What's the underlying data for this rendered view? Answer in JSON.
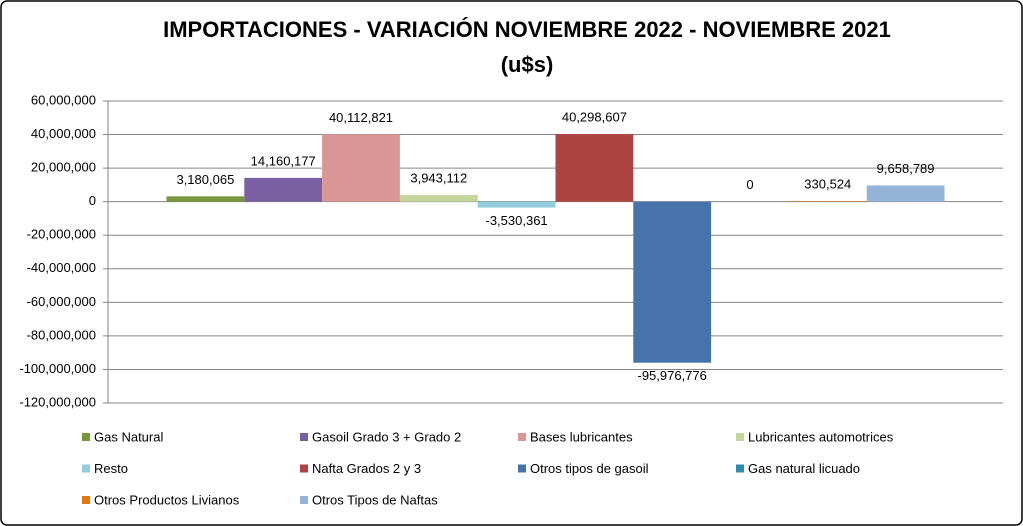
{
  "chart_data": {
    "type": "bar",
    "title": "IMPORTACIONES - VARIACIÓN NOVIEMBRE 2022 - NOVIEMBRE 2021",
    "subtitle": "(u$s)",
    "series": [
      {
        "name": "Gas Natural",
        "color": "#77973d",
        "values": [
          3180065
        ],
        "value_labels": [
          "3,180,065"
        ]
      },
      {
        "name": "Gasoil Grado 3 + Grado 2",
        "color": "#7b5fa3",
        "values": [
          14160177
        ],
        "value_labels": [
          "14,160,177"
        ]
      },
      {
        "name": "Bases lubricantes",
        "color": "#d99694",
        "values": [
          40112821
        ],
        "value_labels": [
          "40,112,821"
        ]
      },
      {
        "name": "Lubricantes automotrices",
        "color": "#c3d69b",
        "values": [
          3943112
        ],
        "value_labels": [
          "3,943,112"
        ]
      },
      {
        "name": "Resto",
        "color": "#93cddd",
        "values": [
          -3530361
        ],
        "value_labels": [
          "-3,530,361"
        ]
      },
      {
        "name": "Nafta Grados 2 y 3",
        "color": "#ab4442",
        "values": [
          40298607
        ],
        "value_labels": [
          "40,298,607"
        ]
      },
      {
        "name": "Otros tipos de gasoil",
        "color": "#4673a9",
        "values": [
          -95976776
        ],
        "value_labels": [
          "-95,976,776"
        ]
      },
      {
        "name": "Gas natural licuado",
        "color": "#2e8db0",
        "values": [
          0
        ]
      },
      {
        "name": "Otros Productos Livianos",
        "color": "#e4780f",
        "values": [
          330524
        ],
        "value_labels": [
          "330,524"
        ]
      },
      {
        "name": "Otros Tipos de Naftas",
        "color": "#95b3d7",
        "values": [
          9658789
        ],
        "value_labels": [
          "9,658,789"
        ]
      }
    ],
    "ylim": [
      -120000000,
      60000000
    ],
    "yticks": [
      {
        "value": -120000000,
        "label": "-120,000,000"
      },
      {
        "value": -100000000,
        "label": "-100,000,000"
      },
      {
        "value": -80000000,
        "label": "-80,000,000"
      },
      {
        "value": -60000000,
        "label": "-60,000,000"
      },
      {
        "value": -40000000,
        "label": "-40,000,000"
      },
      {
        "value": -20000000,
        "label": "-20,000,000"
      },
      {
        "value": 0,
        "label": "0"
      },
      {
        "value": 20000000,
        "label": "20,000,000"
      },
      {
        "value": 40000000,
        "label": "40,000,000"
      },
      {
        "value": 60000000,
        "label": "60,000,000"
      }
    ],
    "grid": true
  }
}
